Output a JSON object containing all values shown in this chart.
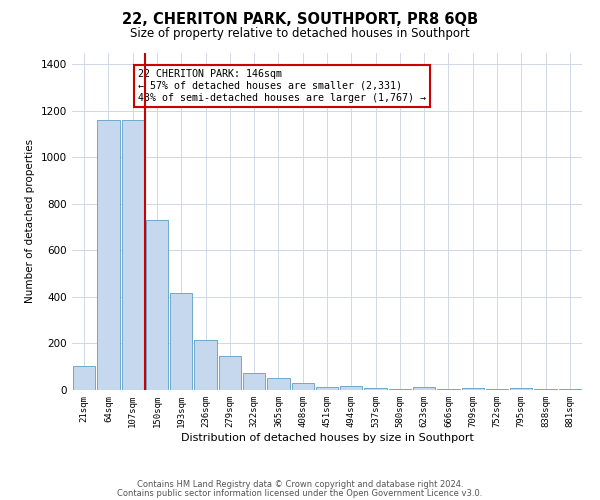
{
  "title": "22, CHERITON PARK, SOUTHPORT, PR8 6QB",
  "subtitle": "Size of property relative to detached houses in Southport",
  "xlabel": "Distribution of detached houses by size in Southport",
  "ylabel": "Number of detached properties",
  "bar_labels": [
    "21sqm",
    "64sqm",
    "107sqm",
    "150sqm",
    "193sqm",
    "236sqm",
    "279sqm",
    "322sqm",
    "365sqm",
    "408sqm",
    "451sqm",
    "494sqm",
    "537sqm",
    "580sqm",
    "623sqm",
    "666sqm",
    "709sqm",
    "752sqm",
    "795sqm",
    "838sqm",
    "881sqm"
  ],
  "bar_values": [
    105,
    1160,
    1160,
    730,
    415,
    215,
    145,
    75,
    50,
    30,
    15,
    18,
    10,
    5,
    12,
    5,
    10,
    3,
    10,
    3,
    5
  ],
  "bar_color": "#c5d8ed",
  "bar_edge_color": "#6fa8cc",
  "vline_color": "#cc0000",
  "annotation_title": "22 CHERITON PARK: 146sqm",
  "annotation_line1": "← 57% of detached houses are smaller (2,331)",
  "annotation_line2": "43% of semi-detached houses are larger (1,767) →",
  "annotation_box_edge": "#cc0000",
  "ylim": [
    0,
    1450
  ],
  "yticks": [
    0,
    200,
    400,
    600,
    800,
    1000,
    1200,
    1400
  ],
  "footer_line1": "Contains HM Land Registry data © Crown copyright and database right 2024.",
  "footer_line2": "Contains public sector information licensed under the Open Government Licence v3.0.",
  "bg_color": "#ffffff",
  "grid_color": "#d0d8e8"
}
